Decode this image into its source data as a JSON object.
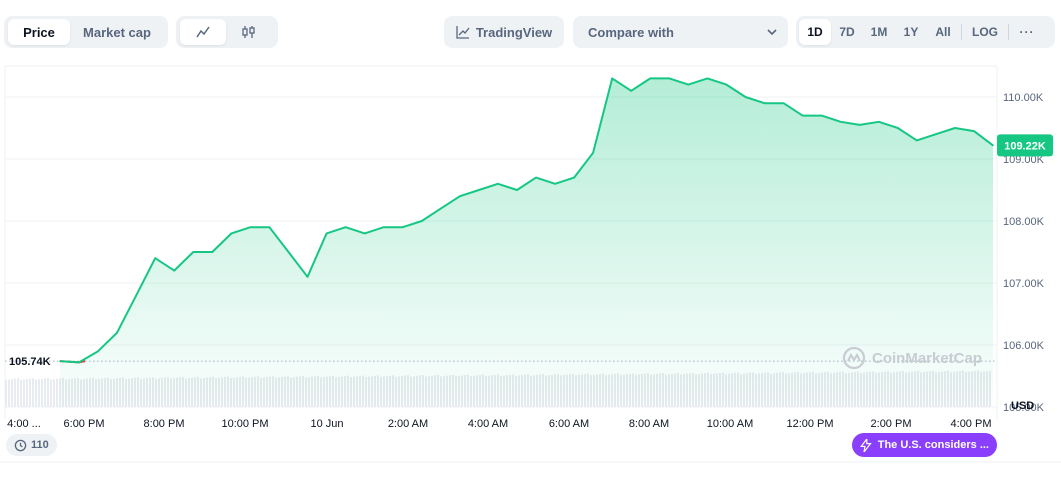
{
  "toolbar": {
    "metric_tabs": [
      {
        "label": "Price",
        "active": true
      },
      {
        "label": "Market cap",
        "active": false
      }
    ],
    "chart_type_icons": [
      "line-chart-icon",
      "candlestick-icon"
    ],
    "tradingview_label": "TradingView",
    "compare_label": "Compare with",
    "ranges": [
      "1D",
      "7D",
      "1M",
      "1Y",
      "All"
    ],
    "active_range": "1D",
    "log_label": "LOG",
    "more_label": "···"
  },
  "chart_data": {
    "type": "area",
    "x": [
      "4:00 PM",
      "4:30 PM",
      "5:00 PM",
      "5:30 PM",
      "6:00 PM",
      "6:30 PM",
      "7:00 PM",
      "7:30 PM",
      "8:00 PM",
      "8:30 PM",
      "9:00 PM",
      "9:30 PM",
      "10:00 PM",
      "10:30 PM",
      "11:00 PM",
      "11:30 PM",
      "12:00 AM",
      "12:30 AM",
      "1:00 AM",
      "1:30 AM",
      "2:00 AM",
      "2:30 AM",
      "3:00 AM",
      "3:30 AM",
      "4:00 AM",
      "4:30 AM",
      "5:00 AM",
      "5:30 AM",
      "6:00 AM",
      "6:30 AM",
      "7:00 AM",
      "7:30 AM",
      "8:00 AM",
      "8:30 AM",
      "9:00 AM",
      "9:30 AM",
      "10:00 AM",
      "10:30 AM",
      "11:00 AM",
      "11:30 AM",
      "12:00 PM",
      "12:30 PM",
      "1:00 PM",
      "1:30 PM",
      "2:00 PM",
      "2:30 PM",
      "3:00 PM",
      "3:30 PM",
      "4:00 PM",
      "4:05 PM"
    ],
    "values": [
      105.74,
      105.72,
      105.9,
      106.2,
      106.8,
      107.4,
      107.2,
      107.5,
      107.5,
      107.8,
      107.9,
      107.9,
      107.5,
      107.1,
      107.8,
      107.9,
      107.8,
      107.9,
      107.9,
      108.0,
      108.2,
      108.4,
      108.5,
      108.6,
      108.5,
      108.7,
      108.6,
      108.7,
      109.1,
      110.3,
      110.1,
      110.3,
      110.3,
      110.2,
      110.3,
      110.2,
      110.0,
      109.9,
      109.9,
      109.7,
      109.7,
      109.6,
      109.55,
      109.6,
      109.5,
      109.3,
      109.4,
      109.5,
      109.45,
      109.22
    ],
    "y_ticks": [
      "110.00K",
      "109.00K",
      "108.00K",
      "107.00K",
      "106.00K",
      "105.00K"
    ],
    "x_tick_labels": [
      "4:00 ...",
      "6:00 PM",
      "8:00 PM",
      "10:00 PM",
      "10 Jun",
      "2:00 AM",
      "4:00 AM",
      "6:00 AM",
      "8:00 AM",
      "10:00 AM",
      "12:00 PM",
      "2:00 PM",
      "4:00 PM"
    ],
    "ylim": [
      105,
      110.5
    ],
    "unit_label": "USD",
    "open_label": "105.74K",
    "open_value": 105.74,
    "current_label": "109.22K",
    "current_value": 109.22,
    "line_color": "#16c784",
    "down_color": "#ea3943",
    "grid": true
  },
  "watermark": "CoinMarketCap",
  "events_count": "110",
  "news_pill": "The U.S. considers ..."
}
